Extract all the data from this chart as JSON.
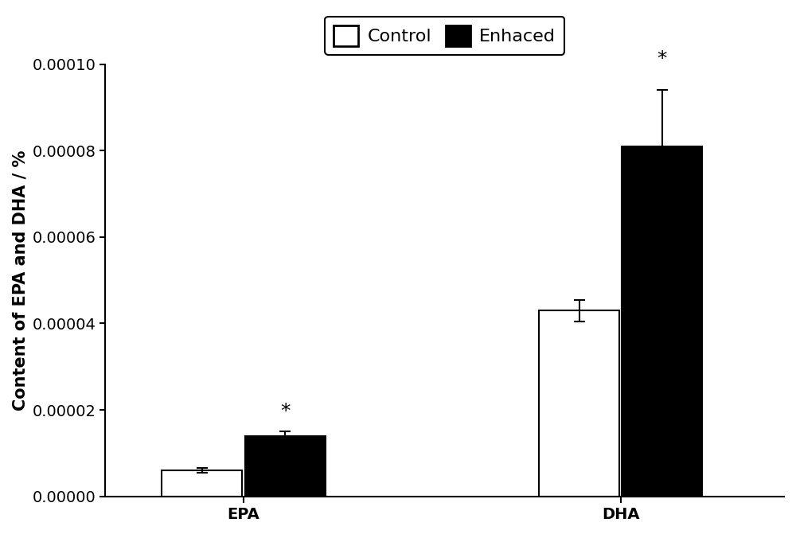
{
  "groups": [
    "EPA",
    "DHA"
  ],
  "control_values": [
    6e-06,
    4.3e-05
  ],
  "enhanced_values": [
    1.4e-05,
    8.1e-05
  ],
  "control_errors": [
    5e-07,
    2.5e-06
  ],
  "enhanced_errors": [
    1e-06,
    1.3e-05
  ],
  "control_color": "#ffffff",
  "enhanced_color": "#000000",
  "bar_edge_color": "#000000",
  "ylabel": "Content of EPA and DHA / %",
  "ylim": [
    0,
    0.0001
  ],
  "yticks": [
    0.0,
    2e-05,
    4e-05,
    6e-05,
    8e-05,
    0.0001
  ],
  "legend_labels": [
    "Control",
    "Enhaced"
  ],
  "significance_label": "*",
  "bar_width": 0.32,
  "label_fontsize": 15,
  "tick_fontsize": 14,
  "legend_fontsize": 16
}
